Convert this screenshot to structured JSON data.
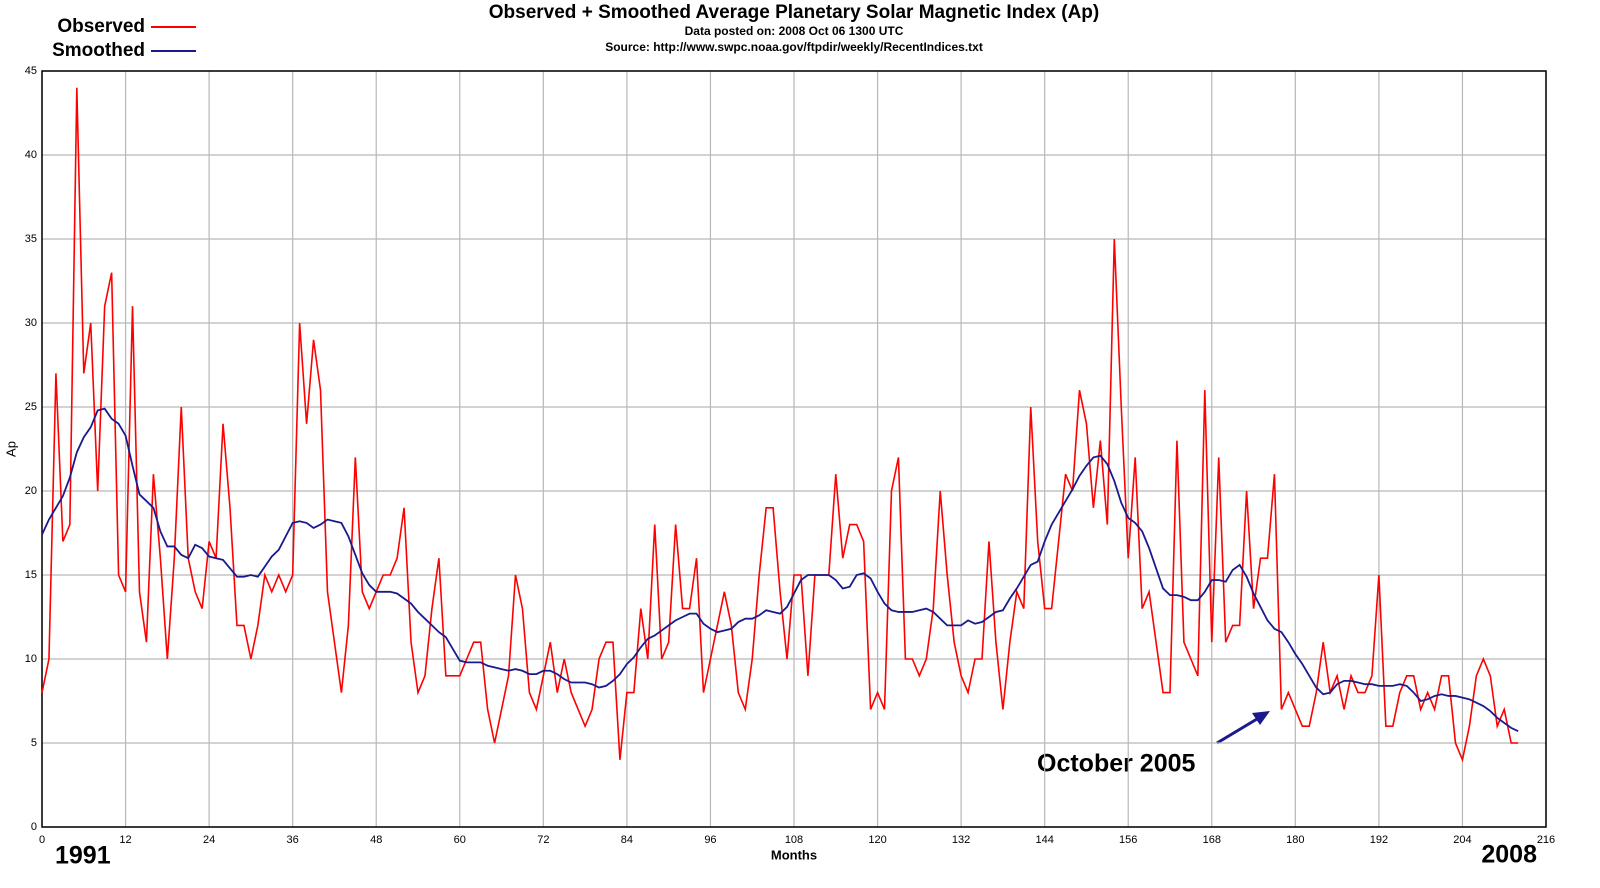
{
  "chart_data": {
    "type": "line",
    "title": "Observed + Smoothed Average Planetary Solar Magnetic Index (Ap)",
    "subtitle": [
      "Data posted on: 2008 Oct 06 1300 UTC",
      "Source: http://www.swpc.noaa.gov/ftpdir/weekly/RecentIndices.txt"
    ],
    "x_label": "Months",
    "y_label": "Ap",
    "annotations": [
      "1991",
      "2008",
      "October 2005"
    ],
    "xlim": [
      0,
      216
    ],
    "xticks": [
      0,
      12,
      24,
      36,
      48,
      60,
      72,
      84,
      96,
      108,
      120,
      132,
      144,
      156,
      168,
      180,
      192,
      204,
      216
    ],
    "ylim": [
      0,
      45
    ],
    "yticks": [
      0,
      5,
      10,
      15,
      20,
      25,
      30,
      35,
      40,
      45
    ],
    "grid": true,
    "x": [
      0,
      1,
      2,
      3,
      4,
      5,
      6,
      7,
      8,
      9,
      10,
      11,
      12,
      13,
      14,
      15,
      16,
      17,
      18,
      19,
      20,
      21,
      22,
      23,
      24,
      25,
      26,
      27,
      28,
      29,
      30,
      31,
      32,
      33,
      34,
      35,
      36,
      37,
      38,
      39,
      40,
      41,
      42,
      43,
      44,
      45,
      46,
      47,
      48,
      49,
      50,
      51,
      52,
      53,
      54,
      55,
      56,
      57,
      58,
      59,
      60,
      61,
      62,
      63,
      64,
      65,
      66,
      67,
      68,
      69,
      70,
      71,
      72,
      73,
      74,
      75,
      76,
      77,
      78,
      79,
      80,
      81,
      82,
      83,
      84,
      85,
      86,
      87,
      88,
      89,
      90,
      91,
      92,
      93,
      94,
      95,
      96,
      97,
      98,
      99,
      100,
      101,
      102,
      103,
      104,
      105,
      106,
      107,
      108,
      109,
      110,
      111,
      112,
      113,
      114,
      115,
      116,
      117,
      118,
      119,
      120,
      121,
      122,
      123,
      124,
      125,
      126,
      127,
      128,
      129,
      130,
      131,
      132,
      133,
      134,
      135,
      136,
      137,
      138,
      139,
      140,
      141,
      142,
      143,
      144,
      145,
      146,
      147,
      148,
      149,
      150,
      151,
      152,
      153,
      154,
      155,
      156,
      157,
      158,
      159,
      160,
      161,
      162,
      163,
      164,
      165,
      166,
      167,
      168,
      169,
      170,
      171,
      172,
      173,
      174,
      175,
      176,
      177,
      178,
      179,
      180,
      181,
      182,
      183,
      184,
      185,
      186,
      187,
      188,
      189,
      190,
      191,
      192,
      193,
      194,
      195,
      196,
      197,
      198,
      199,
      200,
      201,
      202,
      203,
      204,
      205,
      206,
      207,
      208,
      209,
      210,
      211,
      212
    ],
    "series": [
      {
        "name": "Observed",
        "color": "#ff0000",
        "values": [
          8,
          10,
          27,
          17,
          18,
          44,
          27,
          30,
          20,
          31,
          33,
          15,
          14,
          31,
          14,
          11,
          21,
          16,
          10,
          16,
          25,
          16,
          14,
          13,
          17,
          16,
          24,
          19,
          12,
          12,
          10,
          12,
          15,
          14,
          15,
          14,
          15,
          30,
          24,
          29,
          26,
          14,
          11,
          8,
          12,
          22,
          14,
          13,
          14,
          15,
          15,
          16,
          19,
          11,
          8,
          9,
          13,
          16,
          9,
          9,
          9,
          10,
          11,
          11,
          7,
          5,
          7,
          9,
          15,
          13,
          8,
          7,
          9,
          11,
          8,
          10,
          8,
          7,
          6,
          7,
          10,
          11,
          11,
          4,
          8,
          8,
          13,
          10,
          18,
          10,
          11,
          18,
          13,
          13,
          16,
          8,
          10,
          12,
          14,
          12,
          8,
          7,
          10,
          15,
          19,
          19,
          14,
          10,
          15,
          15,
          9,
          15,
          15,
          15,
          21,
          16,
          18,
          18,
          17,
          7,
          8,
          7,
          20,
          22,
          10,
          10,
          9,
          10,
          13,
          20,
          15,
          11,
          9,
          8,
          10,
          10,
          17,
          11,
          7,
          11,
          14,
          13,
          25,
          17,
          13,
          13,
          17,
          21,
          20,
          26,
          24,
          19,
          23,
          18,
          35,
          25,
          16,
          22,
          13,
          14,
          11,
          8,
          8,
          23,
          11,
          10,
          9,
          26,
          11,
          22,
          11,
          12,
          12,
          20,
          13,
          16,
          16,
          21,
          7,
          8,
          7,
          6,
          6,
          8,
          11,
          8,
          9,
          7,
          9,
          8,
          8,
          9,
          15,
          6,
          6,
          8,
          9,
          9,
          7,
          8,
          7,
          9,
          9,
          5,
          4,
          6,
          9,
          10,
          9,
          6,
          7,
          5,
          5
        ]
      },
      {
        "name": "Smoothed",
        "color": "#1a1a8c",
        "values": [
          17.4,
          18.3,
          19,
          19.7,
          20.8,
          22.3,
          23.2,
          23.8,
          24.8,
          24.9,
          24.3,
          24,
          23.3,
          21.5,
          19.8,
          19.4,
          19,
          17.6,
          16.7,
          16.7,
          16.2,
          16,
          16.8,
          16.6,
          16.1,
          16,
          15.9,
          15.4,
          14.9,
          14.9,
          15,
          14.9,
          15.5,
          16.1,
          16.5,
          17.3,
          18.1,
          18.2,
          18.1,
          17.8,
          18,
          18.3,
          18.2,
          18.1,
          17.3,
          16.2,
          15.1,
          14.4,
          14,
          14,
          14,
          13.9,
          13.6,
          13.3,
          12.8,
          12.4,
          12,
          11.6,
          11.3,
          10.6,
          9.9,
          9.8,
          9.8,
          9.8,
          9.6,
          9.5,
          9.4,
          9.3,
          9.4,
          9.3,
          9.1,
          9.1,
          9.3,
          9.3,
          9.1,
          8.8,
          8.6,
          8.6,
          8.6,
          8.5,
          8.3,
          8.4,
          8.7,
          9.1,
          9.7,
          10.1,
          10.7,
          11.2,
          11.4,
          11.7,
          12,
          12.3,
          12.5,
          12.7,
          12.7,
          12.1,
          11.8,
          11.6,
          11.7,
          11.8,
          12.2,
          12.4,
          12.4,
          12.6,
          12.9,
          12.8,
          12.7,
          13.1,
          13.9,
          14.7,
          15,
          15,
          15,
          15,
          14.7,
          14.2,
          14.3,
          15,
          15.1,
          14.8,
          14,
          13.3,
          12.9,
          12.8,
          12.8,
          12.8,
          12.9,
          13,
          12.8,
          12.4,
          12,
          12,
          12,
          12.3,
          12.1,
          12.2,
          12.5,
          12.8,
          12.9,
          13.6,
          14.2,
          14.9,
          15.6,
          15.8,
          17,
          18,
          18.7,
          19.4,
          20.1,
          20.9,
          21.5,
          22,
          22.1,
          21.6,
          20.6,
          19.3,
          18.4,
          18.1,
          17.6,
          16.6,
          15.4,
          14.2,
          13.8,
          13.8,
          13.7,
          13.5,
          13.5,
          14,
          14.7,
          14.7,
          14.6,
          15.3,
          15.6,
          14.9,
          13.9,
          13.1,
          12.3,
          11.8,
          11.6,
          11,
          10.3,
          9.7,
          9,
          8.3,
          7.9,
          8,
          8.5,
          8.7,
          8.7,
          8.6,
          8.5,
          8.5,
          8.4,
          8.4,
          8.4,
          8.5,
          8.4,
          8,
          7.5,
          7.6,
          7.8,
          7.9,
          7.8,
          7.8,
          7.7,
          7.6,
          7.4,
          7.2,
          6.9,
          6.5,
          6.2,
          5.9,
          5.7
        ]
      }
    ]
  }
}
